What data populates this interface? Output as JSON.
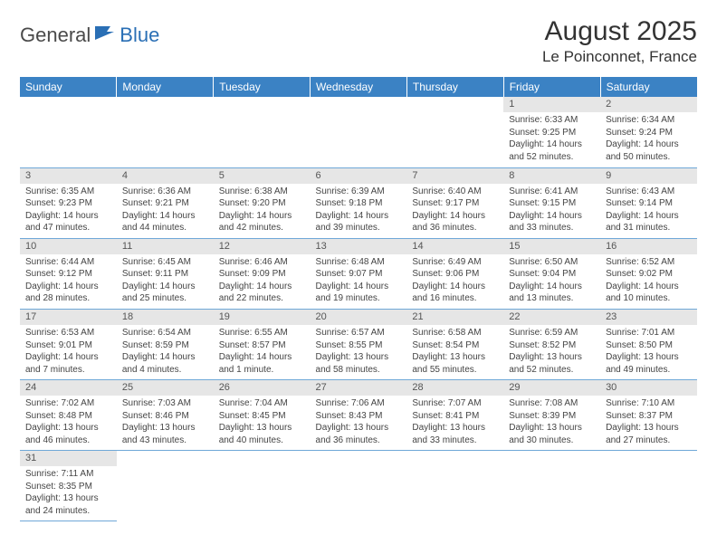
{
  "logo": {
    "text1": "General",
    "text2": "Blue"
  },
  "title": "August 2025",
  "location": "Le Poinconnet, France",
  "colors": {
    "header_bg": "#3b82c4",
    "header_text": "#ffffff",
    "daynum_bg": "#e6e6e6",
    "row_border": "#6fa8d8",
    "logo_gray": "#4a4a4a",
    "logo_blue": "#2a6fb5"
  },
  "days_of_week": [
    "Sunday",
    "Monday",
    "Tuesday",
    "Wednesday",
    "Thursday",
    "Friday",
    "Saturday"
  ],
  "weeks": [
    [
      null,
      null,
      null,
      null,
      null,
      {
        "n": "1",
        "sunrise": "Sunrise: 6:33 AM",
        "sunset": "Sunset: 9:25 PM",
        "daylight1": "Daylight: 14 hours",
        "daylight2": "and 52 minutes."
      },
      {
        "n": "2",
        "sunrise": "Sunrise: 6:34 AM",
        "sunset": "Sunset: 9:24 PM",
        "daylight1": "Daylight: 14 hours",
        "daylight2": "and 50 minutes."
      }
    ],
    [
      {
        "n": "3",
        "sunrise": "Sunrise: 6:35 AM",
        "sunset": "Sunset: 9:23 PM",
        "daylight1": "Daylight: 14 hours",
        "daylight2": "and 47 minutes."
      },
      {
        "n": "4",
        "sunrise": "Sunrise: 6:36 AM",
        "sunset": "Sunset: 9:21 PM",
        "daylight1": "Daylight: 14 hours",
        "daylight2": "and 44 minutes."
      },
      {
        "n": "5",
        "sunrise": "Sunrise: 6:38 AM",
        "sunset": "Sunset: 9:20 PM",
        "daylight1": "Daylight: 14 hours",
        "daylight2": "and 42 minutes."
      },
      {
        "n": "6",
        "sunrise": "Sunrise: 6:39 AM",
        "sunset": "Sunset: 9:18 PM",
        "daylight1": "Daylight: 14 hours",
        "daylight2": "and 39 minutes."
      },
      {
        "n": "7",
        "sunrise": "Sunrise: 6:40 AM",
        "sunset": "Sunset: 9:17 PM",
        "daylight1": "Daylight: 14 hours",
        "daylight2": "and 36 minutes."
      },
      {
        "n": "8",
        "sunrise": "Sunrise: 6:41 AM",
        "sunset": "Sunset: 9:15 PM",
        "daylight1": "Daylight: 14 hours",
        "daylight2": "and 33 minutes."
      },
      {
        "n": "9",
        "sunrise": "Sunrise: 6:43 AM",
        "sunset": "Sunset: 9:14 PM",
        "daylight1": "Daylight: 14 hours",
        "daylight2": "and 31 minutes."
      }
    ],
    [
      {
        "n": "10",
        "sunrise": "Sunrise: 6:44 AM",
        "sunset": "Sunset: 9:12 PM",
        "daylight1": "Daylight: 14 hours",
        "daylight2": "and 28 minutes."
      },
      {
        "n": "11",
        "sunrise": "Sunrise: 6:45 AM",
        "sunset": "Sunset: 9:11 PM",
        "daylight1": "Daylight: 14 hours",
        "daylight2": "and 25 minutes."
      },
      {
        "n": "12",
        "sunrise": "Sunrise: 6:46 AM",
        "sunset": "Sunset: 9:09 PM",
        "daylight1": "Daylight: 14 hours",
        "daylight2": "and 22 minutes."
      },
      {
        "n": "13",
        "sunrise": "Sunrise: 6:48 AM",
        "sunset": "Sunset: 9:07 PM",
        "daylight1": "Daylight: 14 hours",
        "daylight2": "and 19 minutes."
      },
      {
        "n": "14",
        "sunrise": "Sunrise: 6:49 AM",
        "sunset": "Sunset: 9:06 PM",
        "daylight1": "Daylight: 14 hours",
        "daylight2": "and 16 minutes."
      },
      {
        "n": "15",
        "sunrise": "Sunrise: 6:50 AM",
        "sunset": "Sunset: 9:04 PM",
        "daylight1": "Daylight: 14 hours",
        "daylight2": "and 13 minutes."
      },
      {
        "n": "16",
        "sunrise": "Sunrise: 6:52 AM",
        "sunset": "Sunset: 9:02 PM",
        "daylight1": "Daylight: 14 hours",
        "daylight2": "and 10 minutes."
      }
    ],
    [
      {
        "n": "17",
        "sunrise": "Sunrise: 6:53 AM",
        "sunset": "Sunset: 9:01 PM",
        "daylight1": "Daylight: 14 hours",
        "daylight2": "and 7 minutes."
      },
      {
        "n": "18",
        "sunrise": "Sunrise: 6:54 AM",
        "sunset": "Sunset: 8:59 PM",
        "daylight1": "Daylight: 14 hours",
        "daylight2": "and 4 minutes."
      },
      {
        "n": "19",
        "sunrise": "Sunrise: 6:55 AM",
        "sunset": "Sunset: 8:57 PM",
        "daylight1": "Daylight: 14 hours",
        "daylight2": "and 1 minute."
      },
      {
        "n": "20",
        "sunrise": "Sunrise: 6:57 AM",
        "sunset": "Sunset: 8:55 PM",
        "daylight1": "Daylight: 13 hours",
        "daylight2": "and 58 minutes."
      },
      {
        "n": "21",
        "sunrise": "Sunrise: 6:58 AM",
        "sunset": "Sunset: 8:54 PM",
        "daylight1": "Daylight: 13 hours",
        "daylight2": "and 55 minutes."
      },
      {
        "n": "22",
        "sunrise": "Sunrise: 6:59 AM",
        "sunset": "Sunset: 8:52 PM",
        "daylight1": "Daylight: 13 hours",
        "daylight2": "and 52 minutes."
      },
      {
        "n": "23",
        "sunrise": "Sunrise: 7:01 AM",
        "sunset": "Sunset: 8:50 PM",
        "daylight1": "Daylight: 13 hours",
        "daylight2": "and 49 minutes."
      }
    ],
    [
      {
        "n": "24",
        "sunrise": "Sunrise: 7:02 AM",
        "sunset": "Sunset: 8:48 PM",
        "daylight1": "Daylight: 13 hours",
        "daylight2": "and 46 minutes."
      },
      {
        "n": "25",
        "sunrise": "Sunrise: 7:03 AM",
        "sunset": "Sunset: 8:46 PM",
        "daylight1": "Daylight: 13 hours",
        "daylight2": "and 43 minutes."
      },
      {
        "n": "26",
        "sunrise": "Sunrise: 7:04 AM",
        "sunset": "Sunset: 8:45 PM",
        "daylight1": "Daylight: 13 hours",
        "daylight2": "and 40 minutes."
      },
      {
        "n": "27",
        "sunrise": "Sunrise: 7:06 AM",
        "sunset": "Sunset: 8:43 PM",
        "daylight1": "Daylight: 13 hours",
        "daylight2": "and 36 minutes."
      },
      {
        "n": "28",
        "sunrise": "Sunrise: 7:07 AM",
        "sunset": "Sunset: 8:41 PM",
        "daylight1": "Daylight: 13 hours",
        "daylight2": "and 33 minutes."
      },
      {
        "n": "29",
        "sunrise": "Sunrise: 7:08 AM",
        "sunset": "Sunset: 8:39 PM",
        "daylight1": "Daylight: 13 hours",
        "daylight2": "and 30 minutes."
      },
      {
        "n": "30",
        "sunrise": "Sunrise: 7:10 AM",
        "sunset": "Sunset: 8:37 PM",
        "daylight1": "Daylight: 13 hours",
        "daylight2": "and 27 minutes."
      }
    ],
    [
      {
        "n": "31",
        "sunrise": "Sunrise: 7:11 AM",
        "sunset": "Sunset: 8:35 PM",
        "daylight1": "Daylight: 13 hours",
        "daylight2": "and 24 minutes."
      },
      null,
      null,
      null,
      null,
      null,
      null
    ]
  ]
}
